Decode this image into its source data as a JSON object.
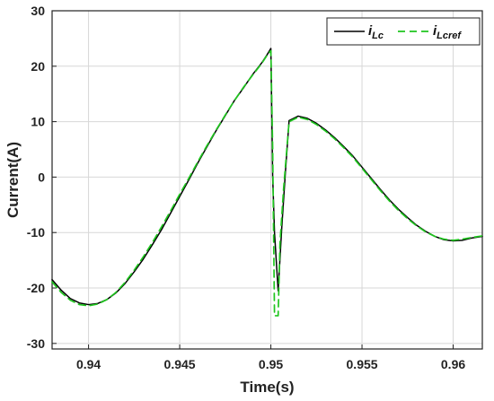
{
  "chart_data": {
    "type": "line",
    "title": "",
    "xlabel": "Time(s)",
    "ylabel": "Current(A)",
    "xlim": [
      0.938,
      0.9616
    ],
    "ylim": [
      -31,
      30
    ],
    "xticks": [
      0.94,
      0.945,
      0.95,
      0.955,
      0.96
    ],
    "xtick_labels": [
      "0.94",
      "0.945",
      "0.95",
      "0.955",
      "0.96"
    ],
    "yticks": [
      -30,
      -20,
      -10,
      0,
      10,
      20,
      30
    ],
    "ytick_labels": [
      "-30",
      "-20",
      "-10",
      "0",
      "10",
      "20",
      "30"
    ],
    "grid": true,
    "legend_position": "top-right",
    "series": [
      {
        "name": "i_Lc",
        "legend_main": "i",
        "legend_sub": "Lc",
        "color": "#000000",
        "line_style": "solid",
        "points": [
          [
            0.938,
            -18.5
          ],
          [
            0.9385,
            -20.4
          ],
          [
            0.939,
            -21.9
          ],
          [
            0.9395,
            -22.7
          ],
          [
            0.94,
            -23.0
          ],
          [
            0.9405,
            -22.8
          ],
          [
            0.941,
            -22.1
          ],
          [
            0.9415,
            -20.9
          ],
          [
            0.942,
            -19.2
          ],
          [
            0.9425,
            -17.1
          ],
          [
            0.943,
            -14.8
          ],
          [
            0.9435,
            -12.2
          ],
          [
            0.944,
            -9.5
          ],
          [
            0.9445,
            -6.5
          ],
          [
            0.945,
            -3.5
          ],
          [
            0.9455,
            -0.5
          ],
          [
            0.946,
            2.6
          ],
          [
            0.9465,
            5.5
          ],
          [
            0.947,
            8.4
          ],
          [
            0.9475,
            11.1
          ],
          [
            0.948,
            13.8
          ],
          [
            0.9485,
            16.1
          ],
          [
            0.949,
            18.5
          ],
          [
            0.9495,
            20.6
          ],
          [
            0.9498,
            22.1
          ],
          [
            0.95,
            23.2
          ],
          [
            0.9501,
            0.0
          ],
          [
            0.9502,
            -10.0
          ],
          [
            0.9504,
            -20.5
          ],
          [
            0.9506,
            -9.0
          ],
          [
            0.9508,
            1.0
          ],
          [
            0.951,
            10.2
          ],
          [
            0.9515,
            11.0
          ],
          [
            0.952,
            10.6
          ],
          [
            0.9525,
            9.7
          ],
          [
            0.953,
            8.5
          ],
          [
            0.9535,
            7.1
          ],
          [
            0.954,
            5.5
          ],
          [
            0.9545,
            3.8
          ],
          [
            0.955,
            1.8
          ],
          [
            0.9555,
            -0.2
          ],
          [
            0.956,
            -2.2
          ],
          [
            0.9565,
            -4.1
          ],
          [
            0.957,
            -5.8
          ],
          [
            0.9575,
            -7.3
          ],
          [
            0.958,
            -8.7
          ],
          [
            0.9585,
            -9.8
          ],
          [
            0.959,
            -10.7
          ],
          [
            0.9595,
            -11.3
          ],
          [
            0.96,
            -11.5
          ],
          [
            0.9605,
            -11.4
          ],
          [
            0.961,
            -11.0
          ],
          [
            0.9616,
            -10.7
          ]
        ]
      },
      {
        "name": "i_Lcref",
        "legend_main": "i",
        "legend_sub": "Lcref",
        "color": "#1fc51f",
        "line_style": "dashed",
        "points": [
          [
            0.938,
            -18.9
          ],
          [
            0.9385,
            -20.8
          ],
          [
            0.939,
            -22.2
          ],
          [
            0.9395,
            -23.0
          ],
          [
            0.94,
            -23.2
          ],
          [
            0.9405,
            -22.9
          ],
          [
            0.941,
            -22.1
          ],
          [
            0.9415,
            -20.8
          ],
          [
            0.942,
            -19.0
          ],
          [
            0.9425,
            -16.8
          ],
          [
            0.943,
            -14.4
          ],
          [
            0.9435,
            -11.8
          ],
          [
            0.944,
            -9.0
          ],
          [
            0.9445,
            -6.1
          ],
          [
            0.945,
            -3.1
          ],
          [
            0.9455,
            -0.2
          ],
          [
            0.946,
            2.8
          ],
          [
            0.9465,
            5.7
          ],
          [
            0.947,
            8.5
          ],
          [
            0.9475,
            11.2
          ],
          [
            0.948,
            13.8
          ],
          [
            0.9485,
            16.2
          ],
          [
            0.949,
            18.4
          ],
          [
            0.9495,
            20.5
          ],
          [
            0.9498,
            22.0
          ],
          [
            0.95,
            22.8
          ],
          [
            0.9501,
            5.0
          ],
          [
            0.9502,
            -25.0
          ],
          [
            0.9504,
            -25.0
          ],
          [
            0.9505,
            -12.0
          ],
          [
            0.9507,
            -2.0
          ],
          [
            0.951,
            10.0
          ],
          [
            0.9515,
            10.8
          ],
          [
            0.952,
            10.4
          ],
          [
            0.9525,
            9.5
          ],
          [
            0.953,
            8.3
          ],
          [
            0.9535,
            6.9
          ],
          [
            0.954,
            5.3
          ],
          [
            0.9545,
            3.6
          ],
          [
            0.955,
            1.6
          ],
          [
            0.9555,
            -0.4
          ],
          [
            0.956,
            -2.4
          ],
          [
            0.9565,
            -4.3
          ],
          [
            0.957,
            -6.0
          ],
          [
            0.9575,
            -7.5
          ],
          [
            0.958,
            -8.8
          ],
          [
            0.9585,
            -9.9
          ],
          [
            0.959,
            -10.7
          ],
          [
            0.9595,
            -11.2
          ],
          [
            0.96,
            -11.4
          ],
          [
            0.9605,
            -11.2
          ],
          [
            0.961,
            -10.9
          ],
          [
            0.9616,
            -10.6
          ]
        ]
      }
    ]
  }
}
